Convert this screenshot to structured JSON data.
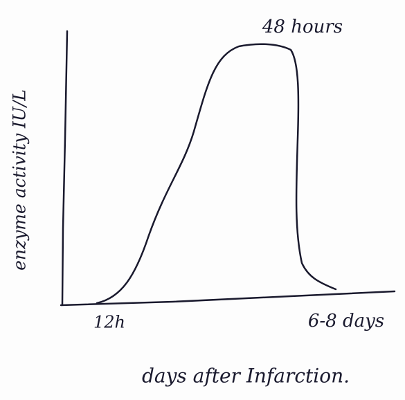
{
  "diagram": {
    "peak_label": "48 hours",
    "y_axis_label": "enzyme activity IU/L",
    "x_labels": [
      "12h",
      "6-8 days"
    ],
    "x_axis_label": "days after Infarction."
  }
}
